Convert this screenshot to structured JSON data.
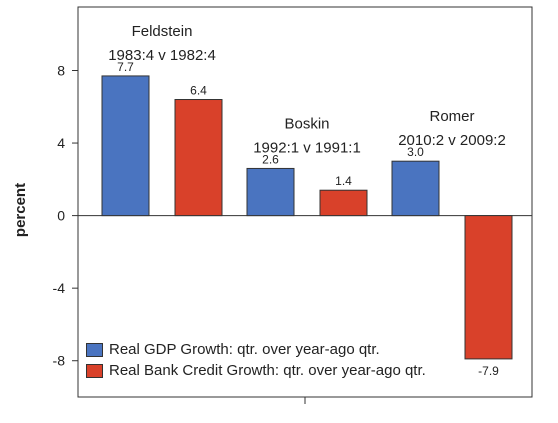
{
  "chart_data": {
    "type": "bar",
    "ylabel": "percent",
    "ylim": [
      -10,
      11.5
    ],
    "yticks": [
      -8,
      -4,
      0,
      4,
      8
    ],
    "grid": false,
    "legend_position": "bottom-left",
    "colors": {
      "gdp": "#4A74C0",
      "credit": "#D9412A"
    },
    "groups": [
      {
        "name": "Feldstein",
        "period": "1983:4 v 1982:4",
        "gdp": 7.7,
        "credit": 6.4
      },
      {
        "name": "Boskin",
        "period": "1992:1 v 1991:1",
        "gdp": 2.6,
        "credit": 1.4
      },
      {
        "name": "Romer",
        "period": "2010:2 v 2009:2",
        "gdp": 3.0,
        "credit": -7.9
      }
    ],
    "series": [
      {
        "key": "gdp",
        "name": "Real GDP Growth: qtr. over year-ago qtr."
      },
      {
        "key": "credit",
        "name": "Real Bank Credit Growth: qtr. over year-ago qtr."
      }
    ]
  }
}
